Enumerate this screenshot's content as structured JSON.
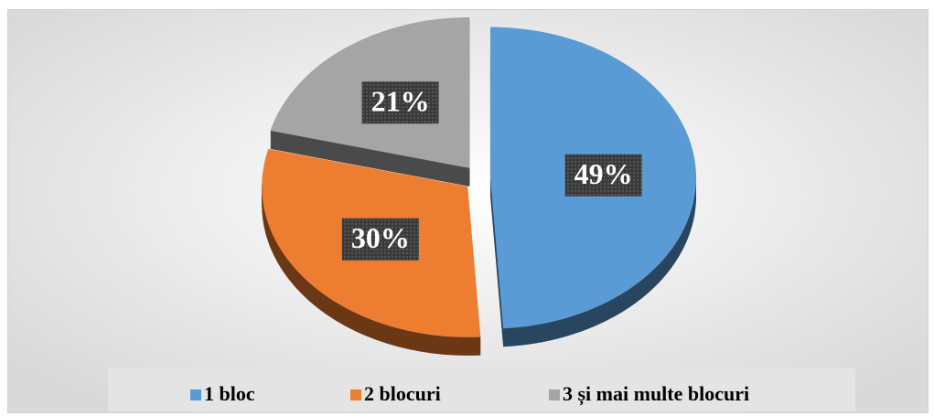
{
  "chart_data": {
    "type": "pie",
    "categories": [
      "1 bloc",
      "2 blocuri",
      "3 și mai multe blocuri"
    ],
    "values": [
      49,
      30,
      21
    ],
    "value_labels": [
      "49%",
      "30%",
      "21%"
    ],
    "colors": [
      "#5b9bd5",
      "#ed7d31",
      "#a5a5a5"
    ],
    "legend": "bottom"
  }
}
